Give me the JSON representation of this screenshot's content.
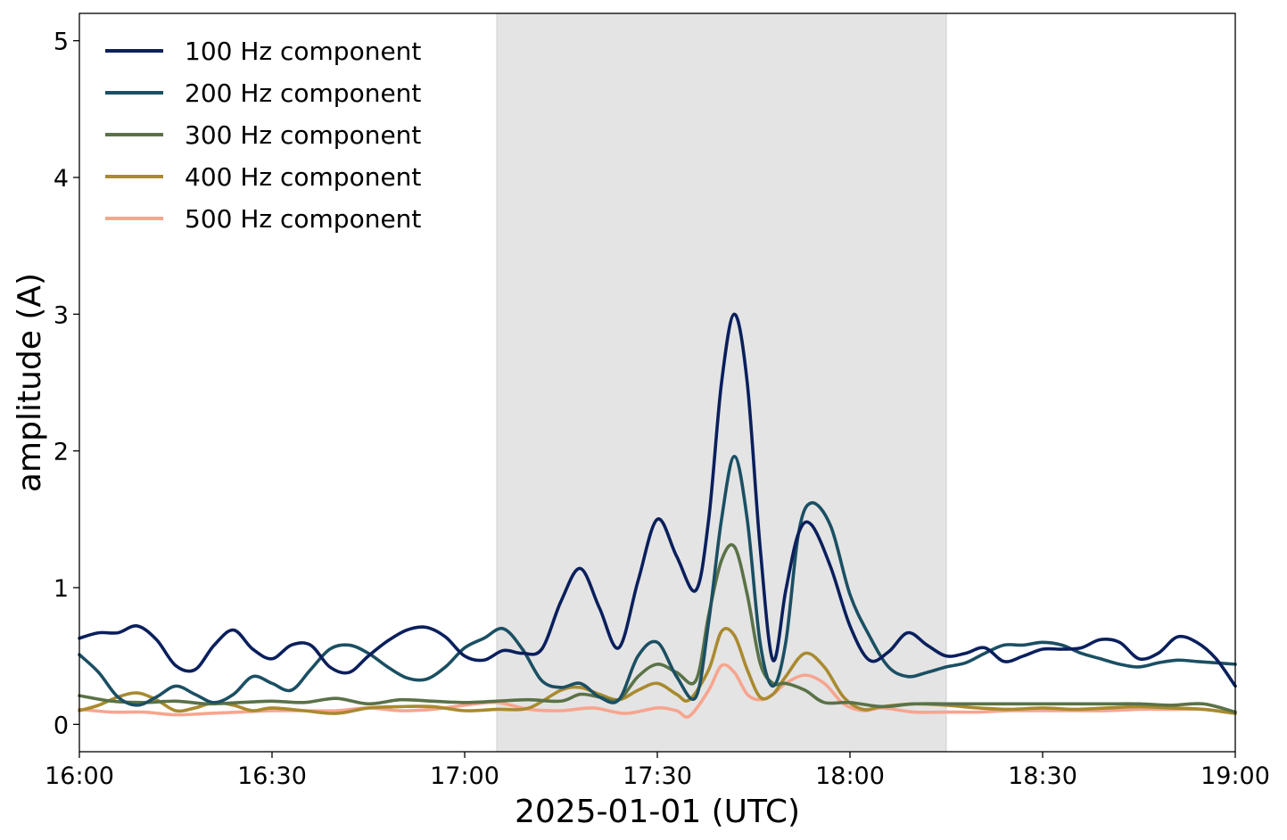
{
  "chart_data": {
    "type": "line",
    "title": "",
    "xlabel": "2025-01-01 (UTC)",
    "ylabel": "amplitude (A)",
    "x_unit": "time (HH:MM)",
    "xlim": [
      "16:00",
      "19:00"
    ],
    "ylim": [
      -0.2,
      5.2
    ],
    "x_ticks": [
      "16:00",
      "16:30",
      "17:00",
      "17:30",
      "18:00",
      "18:30",
      "19:00"
    ],
    "y_ticks": [
      "0",
      "1",
      "2",
      "3",
      "4",
      "5"
    ],
    "grid": false,
    "legend_position": "top-left",
    "shaded_region": {
      "start": "17:05",
      "end": "18:15",
      "color": "#e4e4e4"
    },
    "series": [
      {
        "name": "100 Hz component",
        "color": "#0a1f5c",
        "x": [
          "16:00",
          "16:03",
          "16:06",
          "16:09",
          "16:12",
          "16:15",
          "16:18",
          "16:21",
          "16:24",
          "16:27",
          "16:30",
          "16:33",
          "16:36",
          "16:39",
          "16:42",
          "16:45",
          "16:48",
          "16:51",
          "16:54",
          "16:57",
          "17:00",
          "17:03",
          "17:06",
          "17:09",
          "17:12",
          "17:15",
          "17:18",
          "17:21",
          "17:24",
          "17:27",
          "17:30",
          "17:33",
          "17:36",
          "17:38",
          "17:40",
          "17:42",
          "17:44",
          "17:46",
          "17:48",
          "17:50",
          "17:52",
          "17:54",
          "17:57",
          "18:00",
          "18:03",
          "18:06",
          "18:09",
          "18:12",
          "18:15",
          "18:18",
          "18:21",
          "18:24",
          "18:27",
          "18:30",
          "18:33",
          "18:36",
          "18:39",
          "18:42",
          "18:45",
          "18:48",
          "18:51",
          "18:54",
          "18:57",
          "19:00"
        ],
        "y": [
          0.63,
          0.67,
          0.67,
          0.72,
          0.62,
          0.43,
          0.4,
          0.58,
          0.69,
          0.55,
          0.48,
          0.58,
          0.58,
          0.42,
          0.38,
          0.5,
          0.61,
          0.69,
          0.71,
          0.64,
          0.5,
          0.47,
          0.54,
          0.52,
          0.55,
          0.9,
          1.14,
          0.85,
          0.56,
          1.05,
          1.5,
          1.23,
          0.98,
          1.5,
          2.5,
          3.0,
          2.5,
          1.3,
          0.47,
          0.98,
          1.4,
          1.46,
          1.15,
          0.72,
          0.47,
          0.53,
          0.67,
          0.58,
          0.5,
          0.52,
          0.56,
          0.46,
          0.5,
          0.55,
          0.55,
          0.56,
          0.62,
          0.6,
          0.48,
          0.52,
          0.64,
          0.6,
          0.48,
          0.28
        ]
      },
      {
        "name": "200 Hz component",
        "color": "#1b4f63",
        "x": [
          "16:00",
          "16:03",
          "16:06",
          "16:09",
          "16:12",
          "16:15",
          "16:18",
          "16:21",
          "16:24",
          "16:27",
          "16:30",
          "16:33",
          "16:36",
          "16:39",
          "16:42",
          "16:45",
          "16:48",
          "16:51",
          "16:54",
          "16:57",
          "17:00",
          "17:03",
          "17:06",
          "17:09",
          "17:12",
          "17:15",
          "17:18",
          "17:21",
          "17:24",
          "17:27",
          "17:30",
          "17:33",
          "17:36",
          "17:38",
          "17:40",
          "17:42",
          "17:44",
          "17:46",
          "17:48",
          "17:50",
          "17:52",
          "17:54",
          "17:57",
          "18:00",
          "18:03",
          "18:06",
          "18:09",
          "18:12",
          "18:15",
          "18:18",
          "18:21",
          "18:24",
          "18:27",
          "18:30",
          "18:33",
          "18:36",
          "18:39",
          "18:42",
          "18:45",
          "18:48",
          "18:51",
          "18:54",
          "18:57",
          "19:00"
        ],
        "y": [
          0.51,
          0.38,
          0.2,
          0.14,
          0.2,
          0.28,
          0.22,
          0.16,
          0.22,
          0.35,
          0.3,
          0.25,
          0.4,
          0.55,
          0.58,
          0.52,
          0.42,
          0.34,
          0.33,
          0.42,
          0.56,
          0.63,
          0.7,
          0.55,
          0.32,
          0.27,
          0.3,
          0.2,
          0.18,
          0.5,
          0.6,
          0.35,
          0.2,
          0.75,
          1.5,
          1.96,
          1.5,
          0.6,
          0.28,
          0.6,
          1.4,
          1.62,
          1.45,
          0.95,
          0.65,
          0.42,
          0.35,
          0.38,
          0.42,
          0.45,
          0.52,
          0.58,
          0.58,
          0.6,
          0.58,
          0.52,
          0.48,
          0.44,
          0.42,
          0.45,
          0.47,
          0.46,
          0.45,
          0.44
        ]
      },
      {
        "name": "300 Hz component",
        "color": "#5a7247",
        "x": [
          "16:00",
          "16:05",
          "16:10",
          "16:15",
          "16:20",
          "16:25",
          "16:30",
          "16:35",
          "16:40",
          "16:45",
          "16:50",
          "16:55",
          "17:00",
          "17:05",
          "17:10",
          "17:15",
          "17:18",
          "17:21",
          "17:24",
          "17:27",
          "17:30",
          "17:33",
          "17:36",
          "17:38",
          "17:40",
          "17:42",
          "17:44",
          "17:46",
          "17:48",
          "17:50",
          "17:53",
          "17:56",
          "18:00",
          "18:05",
          "18:10",
          "18:15",
          "18:20",
          "18:25",
          "18:30",
          "18:35",
          "18:40",
          "18:45",
          "18:50",
          "18:55",
          "19:00"
        ],
        "y": [
          0.21,
          0.17,
          0.16,
          0.17,
          0.15,
          0.16,
          0.17,
          0.16,
          0.19,
          0.15,
          0.18,
          0.17,
          0.16,
          0.17,
          0.18,
          0.17,
          0.22,
          0.2,
          0.18,
          0.35,
          0.44,
          0.38,
          0.32,
          0.8,
          1.2,
          1.3,
          0.95,
          0.45,
          0.3,
          0.3,
          0.25,
          0.16,
          0.16,
          0.13,
          0.15,
          0.15,
          0.15,
          0.15,
          0.15,
          0.15,
          0.15,
          0.15,
          0.14,
          0.15,
          0.09
        ]
      },
      {
        "name": "400 Hz component",
        "color": "#a98a2f",
        "x": [
          "16:00",
          "16:03",
          "16:06",
          "16:09",
          "16:12",
          "16:15",
          "16:18",
          "16:21",
          "16:24",
          "16:27",
          "16:30",
          "16:35",
          "16:40",
          "16:45",
          "16:50",
          "16:55",
          "17:00",
          "17:05",
          "17:10",
          "17:15",
          "17:18",
          "17:21",
          "17:24",
          "17:27",
          "17:30",
          "17:33",
          "17:35",
          "17:38",
          "17:40",
          "17:42",
          "17:44",
          "17:46",
          "17:48",
          "17:50",
          "17:53",
          "17:56",
          "17:59",
          "18:02",
          "18:05",
          "18:10",
          "18:15",
          "18:20",
          "18:25",
          "18:30",
          "18:35",
          "18:40",
          "18:45",
          "18:50",
          "18:55",
          "19:00"
        ],
        "y": [
          0.1,
          0.14,
          0.2,
          0.23,
          0.18,
          0.1,
          0.12,
          0.16,
          0.14,
          0.1,
          0.12,
          0.1,
          0.08,
          0.12,
          0.13,
          0.13,
          0.1,
          0.11,
          0.12,
          0.25,
          0.27,
          0.22,
          0.18,
          0.25,
          0.3,
          0.22,
          0.18,
          0.4,
          0.68,
          0.65,
          0.4,
          0.2,
          0.22,
          0.35,
          0.52,
          0.42,
          0.2,
          0.11,
          0.13,
          0.15,
          0.14,
          0.12,
          0.11,
          0.12,
          0.11,
          0.12,
          0.13,
          0.12,
          0.11,
          0.08
        ]
      },
      {
        "name": "500 Hz component",
        "color": "#f7a58f",
        "x": [
          "16:00",
          "16:05",
          "16:10",
          "16:15",
          "16:20",
          "16:25",
          "16:30",
          "16:35",
          "16:40",
          "16:45",
          "16:50",
          "16:55",
          "17:00",
          "17:05",
          "17:10",
          "17:15",
          "17:20",
          "17:25",
          "17:30",
          "17:33",
          "17:35",
          "17:38",
          "17:40",
          "17:42",
          "17:44",
          "17:46",
          "17:48",
          "17:50",
          "17:53",
          "17:56",
          "17:59",
          "18:02",
          "18:05",
          "18:10",
          "18:15",
          "18:20",
          "18:25",
          "18:30",
          "18:35",
          "18:40",
          "18:45",
          "18:50",
          "18:55",
          "19:00"
        ],
        "y": [
          0.11,
          0.09,
          0.09,
          0.07,
          0.08,
          0.09,
          0.1,
          0.1,
          0.1,
          0.12,
          0.1,
          0.11,
          0.14,
          0.16,
          0.11,
          0.1,
          0.12,
          0.08,
          0.12,
          0.1,
          0.06,
          0.25,
          0.43,
          0.38,
          0.22,
          0.18,
          0.22,
          0.3,
          0.36,
          0.3,
          0.15,
          0.1,
          0.12,
          0.09,
          0.09,
          0.09,
          0.1,
          0.1,
          0.1,
          0.1,
          0.11,
          0.11,
          0.11,
          0.08
        ]
      }
    ]
  }
}
